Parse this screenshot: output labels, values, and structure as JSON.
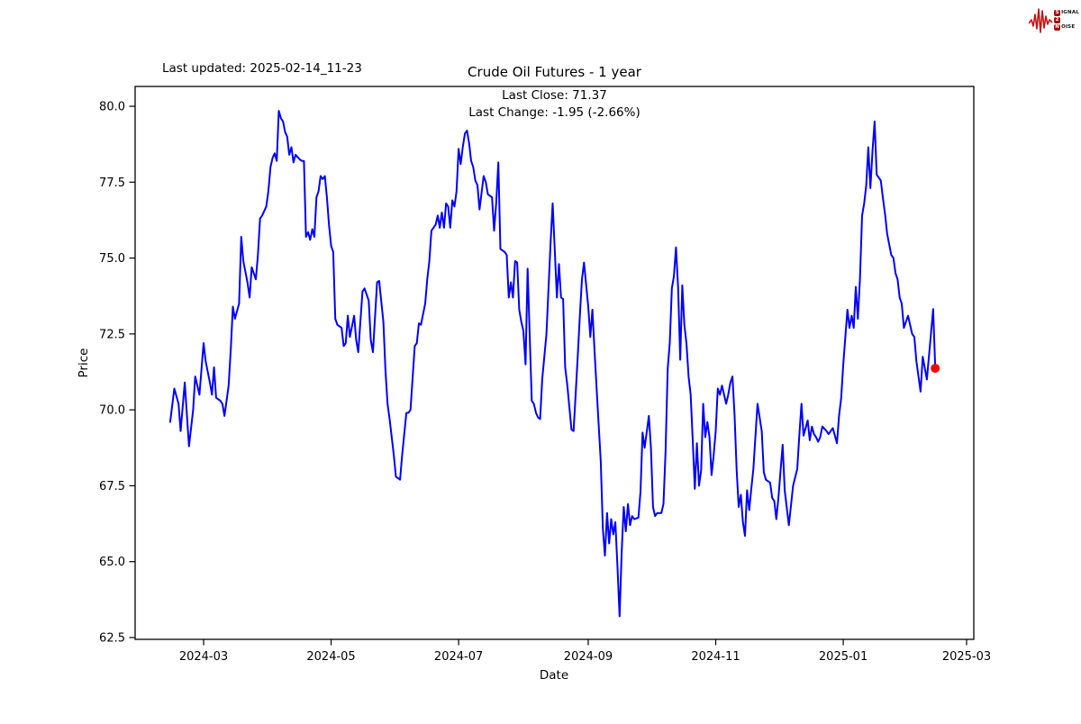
{
  "header": {
    "last_updated": "Last updated: 2025-02-14_11-23"
  },
  "annotation": {
    "line1": "Last Close: 71.37",
    "line2": "Last Change: -1.95 (-2.66%)",
    "last_close": 71.37,
    "last_change": -1.95,
    "last_change_pct": -2.66
  },
  "logo": {
    "waveform_color": "#c41212",
    "rows": [
      {
        "badge": "S",
        "text": "IGNAL"
      },
      {
        "badge": "2",
        "text": ""
      },
      {
        "badge": "N",
        "text": "OISE"
      }
    ]
  },
  "chart_data": {
    "type": "line",
    "title": "Crude Oil Futures - 1 year",
    "xlabel": "Date",
    "ylabel": "Price",
    "line_color": "#0000ff",
    "marker_color": "#ff0000",
    "grid": false,
    "legend": "none",
    "ylim": [
      62.44,
      80.65
    ],
    "y_ticks": [
      {
        "label": "80.0",
        "value": 80.0
      },
      {
        "label": "77.5",
        "value": 77.5
      },
      {
        "label": "75.0",
        "value": 75.0
      },
      {
        "label": "72.5",
        "value": 72.5
      },
      {
        "label": "70.0",
        "value": 70.0
      },
      {
        "label": "67.5",
        "value": 67.5
      },
      {
        "label": "65.0",
        "value": 65.0
      },
      {
        "label": "62.5",
        "value": 62.5
      }
    ],
    "x_ticks": [
      {
        "label": "2024-03",
        "date": "2024-03-01"
      },
      {
        "label": "2024-05",
        "date": "2024-05-01"
      },
      {
        "label": "2024-07",
        "date": "2024-07-01"
      },
      {
        "label": "2024-09",
        "date": "2024-09-01"
      },
      {
        "label": "2024-11",
        "date": "2024-11-01"
      },
      {
        "label": "2025-01",
        "date": "2025-01-01"
      },
      {
        "label": "2025-03",
        "date": "2025-03-01"
      }
    ],
    "last_point": {
      "date": "2025-02-14",
      "price": 71.37
    },
    "series": [
      [
        "2024-02-14",
        69.6
      ],
      [
        "2024-02-16",
        70.7
      ],
      [
        "2024-02-18",
        70.2
      ],
      [
        "2024-02-19",
        69.3
      ],
      [
        "2024-02-21",
        70.9
      ],
      [
        "2024-02-23",
        68.8
      ],
      [
        "2024-02-25",
        70.0
      ],
      [
        "2024-02-26",
        71.1
      ],
      [
        "2024-02-28",
        70.5
      ],
      [
        "2024-03-01",
        72.2
      ],
      [
        "2024-03-02",
        71.6
      ],
      [
        "2024-03-04",
        70.9
      ],
      [
        "2024-03-05",
        70.5
      ],
      [
        "2024-03-06",
        71.4
      ],
      [
        "2024-03-07",
        70.4
      ],
      [
        "2024-03-09",
        70.3
      ],
      [
        "2024-03-10",
        70.2
      ],
      [
        "2024-03-11",
        69.8
      ],
      [
        "2024-03-13",
        70.8
      ],
      [
        "2024-03-14",
        72.0
      ],
      [
        "2024-03-15",
        73.4
      ],
      [
        "2024-03-16",
        73.0
      ],
      [
        "2024-03-18",
        73.5
      ],
      [
        "2024-03-19",
        75.7
      ],
      [
        "2024-03-20",
        74.9
      ],
      [
        "2024-03-22",
        74.2
      ],
      [
        "2024-03-23",
        73.7
      ],
      [
        "2024-03-24",
        74.7
      ],
      [
        "2024-03-26",
        74.3
      ],
      [
        "2024-03-27",
        75.1
      ],
      [
        "2024-03-28",
        76.3
      ],
      [
        "2024-03-29",
        76.4
      ],
      [
        "2024-03-31",
        76.7
      ],
      [
        "2024-04-01",
        77.2
      ],
      [
        "2024-04-02",
        78.0
      ],
      [
        "2024-04-03",
        78.3
      ],
      [
        "2024-04-04",
        78.45
      ],
      [
        "2024-04-05",
        78.2
      ],
      [
        "2024-04-06",
        79.85
      ],
      [
        "2024-04-07",
        79.6
      ],
      [
        "2024-04-08",
        79.5
      ],
      [
        "2024-04-09",
        79.15
      ],
      [
        "2024-04-10",
        79.0
      ],
      [
        "2024-04-11",
        78.4
      ],
      [
        "2024-04-12",
        78.65
      ],
      [
        "2024-04-13",
        78.15
      ],
      [
        "2024-04-14",
        78.4
      ],
      [
        "2024-04-16",
        78.25
      ],
      [
        "2024-04-17",
        78.2
      ],
      [
        "2024-04-18",
        78.2
      ],
      [
        "2024-04-19",
        75.7
      ],
      [
        "2024-04-20",
        75.85
      ],
      [
        "2024-04-21",
        75.6
      ],
      [
        "2024-04-22",
        75.95
      ],
      [
        "2024-04-23",
        75.7
      ],
      [
        "2024-04-24",
        77.0
      ],
      [
        "2024-04-25",
        77.2
      ],
      [
        "2024-04-26",
        77.7
      ],
      [
        "2024-04-27",
        77.6
      ],
      [
        "2024-04-28",
        77.7
      ],
      [
        "2024-04-29",
        77.0
      ],
      [
        "2024-04-30",
        76.1
      ],
      [
        "2024-05-01",
        75.4
      ],
      [
        "2024-05-02",
        75.2
      ],
      [
        "2024-05-03",
        73.0
      ],
      [
        "2024-05-04",
        72.8
      ],
      [
        "2024-05-06",
        72.7
      ],
      [
        "2024-05-07",
        72.1
      ],
      [
        "2024-05-08",
        72.2
      ],
      [
        "2024-05-09",
        73.1
      ],
      [
        "2024-05-10",
        72.4
      ],
      [
        "2024-05-12",
        73.1
      ],
      [
        "2024-05-13",
        72.3
      ],
      [
        "2024-05-14",
        71.9
      ],
      [
        "2024-05-16",
        73.9
      ],
      [
        "2024-05-17",
        74.0
      ],
      [
        "2024-05-19",
        73.6
      ],
      [
        "2024-05-20",
        72.3
      ],
      [
        "2024-05-21",
        71.9
      ],
      [
        "2024-05-23",
        74.2
      ],
      [
        "2024-05-24",
        74.25
      ],
      [
        "2024-05-26",
        72.9
      ],
      [
        "2024-05-27",
        71.3
      ],
      [
        "2024-05-28",
        70.2
      ],
      [
        "2024-05-29",
        69.7
      ],
      [
        "2024-05-31",
        68.5
      ],
      [
        "2024-06-01",
        67.8
      ],
      [
        "2024-06-03",
        67.7
      ],
      [
        "2024-06-04",
        68.5
      ],
      [
        "2024-06-06",
        69.9
      ],
      [
        "2024-06-07",
        69.9
      ],
      [
        "2024-06-08",
        70.0
      ],
      [
        "2024-06-10",
        72.1
      ],
      [
        "2024-06-11",
        72.2
      ],
      [
        "2024-06-12",
        72.85
      ],
      [
        "2024-06-13",
        72.8
      ],
      [
        "2024-06-15",
        73.5
      ],
      [
        "2024-06-16",
        74.3
      ],
      [
        "2024-06-17",
        74.9
      ],
      [
        "2024-06-18",
        75.9
      ],
      [
        "2024-06-20",
        76.1
      ],
      [
        "2024-06-21",
        76.4
      ],
      [
        "2024-06-22",
        76.0
      ],
      [
        "2024-06-23",
        76.5
      ],
      [
        "2024-06-24",
        76.0
      ],
      [
        "2024-06-25",
        76.8
      ],
      [
        "2024-06-26",
        76.7
      ],
      [
        "2024-06-27",
        76.0
      ],
      [
        "2024-06-28",
        76.9
      ],
      [
        "2024-06-29",
        76.7
      ],
      [
        "2024-06-30",
        77.2
      ],
      [
        "2024-07-01",
        78.6
      ],
      [
        "2024-07-02",
        78.1
      ],
      [
        "2024-07-03",
        78.65
      ],
      [
        "2024-07-04",
        79.1
      ],
      [
        "2024-07-05",
        79.2
      ],
      [
        "2024-07-06",
        78.8
      ],
      [
        "2024-07-07",
        78.2
      ],
      [
        "2024-07-08",
        78.0
      ],
      [
        "2024-07-09",
        77.55
      ],
      [
        "2024-07-10",
        77.4
      ],
      [
        "2024-07-11",
        76.6
      ],
      [
        "2024-07-13",
        77.7
      ],
      [
        "2024-07-14",
        77.5
      ],
      [
        "2024-07-15",
        77.1
      ],
      [
        "2024-07-16",
        77.05
      ],
      [
        "2024-07-17",
        77.0
      ],
      [
        "2024-07-18",
        75.9
      ],
      [
        "2024-07-19",
        76.85
      ],
      [
        "2024-07-20",
        78.15
      ],
      [
        "2024-07-21",
        75.3
      ],
      [
        "2024-07-22",
        75.25
      ],
      [
        "2024-07-23",
        75.2
      ],
      [
        "2024-07-24",
        75.1
      ],
      [
        "2024-07-25",
        73.7
      ],
      [
        "2024-07-26",
        74.2
      ],
      [
        "2024-07-27",
        73.7
      ],
      [
        "2024-07-28",
        74.9
      ],
      [
        "2024-07-29",
        74.85
      ],
      [
        "2024-07-30",
        73.3
      ],
      [
        "2024-07-31",
        72.9
      ],
      [
        "2024-08-01",
        72.6
      ],
      [
        "2024-08-02",
        71.5
      ],
      [
        "2024-08-03",
        74.65
      ],
      [
        "2024-08-05",
        70.3
      ],
      [
        "2024-08-06",
        70.2
      ],
      [
        "2024-08-07",
        69.9
      ],
      [
        "2024-08-08",
        69.75
      ],
      [
        "2024-08-09",
        69.7
      ],
      [
        "2024-08-10",
        71.0
      ],
      [
        "2024-08-12",
        72.5
      ],
      [
        "2024-08-13",
        74.0
      ],
      [
        "2024-08-14",
        75.5
      ],
      [
        "2024-08-15",
        76.8
      ],
      [
        "2024-08-17",
        73.7
      ],
      [
        "2024-08-18",
        74.8
      ],
      [
        "2024-08-19",
        73.7
      ],
      [
        "2024-08-20",
        73.65
      ],
      [
        "2024-08-21",
        71.4
      ],
      [
        "2024-08-22",
        70.8
      ],
      [
        "2024-08-24",
        69.35
      ],
      [
        "2024-08-25",
        69.3
      ],
      [
        "2024-08-26",
        70.5
      ],
      [
        "2024-08-27",
        71.8
      ],
      [
        "2024-08-28",
        73.1
      ],
      [
        "2024-08-29",
        74.3
      ],
      [
        "2024-08-30",
        74.85
      ],
      [
        "2024-09-01",
        73.4
      ],
      [
        "2024-09-02",
        72.4
      ],
      [
        "2024-09-03",
        73.3
      ],
      [
        "2024-09-04",
        72.0
      ],
      [
        "2024-09-05",
        70.7
      ],
      [
        "2024-09-06",
        69.5
      ],
      [
        "2024-09-07",
        68.3
      ],
      [
        "2024-09-08",
        66.1
      ],
      [
        "2024-09-09",
        65.2
      ],
      [
        "2024-09-10",
        66.6
      ],
      [
        "2024-09-11",
        65.6
      ],
      [
        "2024-09-12",
        66.4
      ],
      [
        "2024-09-13",
        65.9
      ],
      [
        "2024-09-14",
        66.3
      ],
      [
        "2024-09-15",
        64.8
      ],
      [
        "2024-09-16",
        63.2
      ],
      [
        "2024-09-17",
        65.3
      ],
      [
        "2024-09-18",
        66.8
      ],
      [
        "2024-09-19",
        66.0
      ],
      [
        "2024-09-20",
        66.9
      ],
      [
        "2024-09-21",
        66.2
      ],
      [
        "2024-09-22",
        66.5
      ],
      [
        "2024-09-23",
        66.4
      ],
      [
        "2024-09-25",
        66.45
      ],
      [
        "2024-09-26",
        67.3
      ],
      [
        "2024-09-27",
        69.25
      ],
      [
        "2024-09-28",
        68.75
      ],
      [
        "2024-09-30",
        69.8
      ],
      [
        "2024-10-01",
        68.75
      ],
      [
        "2024-10-02",
        66.8
      ],
      [
        "2024-10-03",
        66.5
      ],
      [
        "2024-10-04",
        66.6
      ],
      [
        "2024-10-06",
        66.6
      ],
      [
        "2024-10-07",
        66.9
      ],
      [
        "2024-10-08",
        68.6
      ],
      [
        "2024-10-09",
        71.35
      ],
      [
        "2024-10-10",
        72.2
      ],
      [
        "2024-10-11",
        74.0
      ],
      [
        "2024-10-12",
        74.4
      ],
      [
        "2024-10-13",
        75.35
      ],
      [
        "2024-10-14",
        74.0
      ],
      [
        "2024-10-15",
        71.65
      ],
      [
        "2024-10-16",
        74.1
      ],
      [
        "2024-10-17",
        72.8
      ],
      [
        "2024-10-18",
        72.2
      ],
      [
        "2024-10-19",
        71.1
      ],
      [
        "2024-10-20",
        70.5
      ],
      [
        "2024-10-21",
        69.0
      ],
      [
        "2024-10-22",
        67.4
      ],
      [
        "2024-10-23",
        68.9
      ],
      [
        "2024-10-24",
        67.5
      ],
      [
        "2024-10-25",
        68.0
      ],
      [
        "2024-10-26",
        70.2
      ],
      [
        "2024-10-27",
        69.1
      ],
      [
        "2024-10-28",
        69.6
      ],
      [
        "2024-10-29",
        69.1
      ],
      [
        "2024-10-30",
        67.85
      ],
      [
        "2024-10-31",
        68.5
      ],
      [
        "2024-11-01",
        69.3
      ],
      [
        "2024-11-02",
        70.7
      ],
      [
        "2024-11-03",
        70.5
      ],
      [
        "2024-11-04",
        70.8
      ],
      [
        "2024-11-05",
        70.5
      ],
      [
        "2024-11-06",
        70.2
      ],
      [
        "2024-11-07",
        70.5
      ],
      [
        "2024-11-08",
        70.9
      ],
      [
        "2024-11-09",
        71.1
      ],
      [
        "2024-11-10",
        69.85
      ],
      [
        "2024-11-11",
        68.05
      ],
      [
        "2024-11-12",
        66.8
      ],
      [
        "2024-11-13",
        67.2
      ],
      [
        "2024-11-14",
        66.3
      ],
      [
        "2024-11-15",
        65.85
      ],
      [
        "2024-11-16",
        67.35
      ],
      [
        "2024-11-17",
        66.7
      ],
      [
        "2024-11-18",
        67.4
      ],
      [
        "2024-11-19",
        68.05
      ],
      [
        "2024-11-21",
        70.2
      ],
      [
        "2024-11-23",
        69.3
      ],
      [
        "2024-11-24",
        67.95
      ],
      [
        "2024-11-25",
        67.7
      ],
      [
        "2024-11-27",
        67.6
      ],
      [
        "2024-11-28",
        67.1
      ],
      [
        "2024-11-29",
        67.0
      ],
      [
        "2024-11-30",
        66.4
      ],
      [
        "2024-12-01",
        67.1
      ],
      [
        "2024-12-03",
        68.85
      ],
      [
        "2024-12-04",
        67.35
      ],
      [
        "2024-12-06",
        66.2
      ],
      [
        "2024-12-08",
        67.5
      ],
      [
        "2024-12-10",
        68.05
      ],
      [
        "2024-12-11",
        69.15
      ],
      [
        "2024-12-12",
        70.2
      ],
      [
        "2024-12-13",
        69.15
      ],
      [
        "2024-12-15",
        69.65
      ],
      [
        "2024-12-16",
        69.0
      ],
      [
        "2024-12-17",
        69.45
      ],
      [
        "2024-12-18",
        69.2
      ],
      [
        "2024-12-19",
        69.1
      ],
      [
        "2024-12-20",
        68.95
      ],
      [
        "2024-12-21",
        69.1
      ],
      [
        "2024-12-22",
        69.45
      ],
      [
        "2024-12-24",
        69.3
      ],
      [
        "2024-12-25",
        69.2
      ],
      [
        "2024-12-26",
        69.3
      ],
      [
        "2024-12-27",
        69.4
      ],
      [
        "2024-12-29",
        68.9
      ],
      [
        "2024-12-30",
        69.8
      ],
      [
        "2024-12-31",
        70.4
      ],
      [
        "2025-01-01",
        71.5
      ],
      [
        "2025-01-03",
        73.3
      ],
      [
        "2025-01-04",
        72.7
      ],
      [
        "2025-01-05",
        73.1
      ],
      [
        "2025-01-06",
        72.7
      ],
      [
        "2025-01-07",
        74.05
      ],
      [
        "2025-01-08",
        73.0
      ],
      [
        "2025-01-09",
        74.3
      ],
      [
        "2025-01-10",
        76.4
      ],
      [
        "2025-01-11",
        76.8
      ],
      [
        "2025-01-12",
        77.4
      ],
      [
        "2025-01-13",
        78.65
      ],
      [
        "2025-01-14",
        77.3
      ],
      [
        "2025-01-15",
        78.55
      ],
      [
        "2025-01-16",
        79.5
      ],
      [
        "2025-01-17",
        77.75
      ],
      [
        "2025-01-19",
        77.55
      ],
      [
        "2025-01-20",
        76.95
      ],
      [
        "2025-01-21",
        76.45
      ],
      [
        "2025-01-22",
        75.8
      ],
      [
        "2025-01-24",
        75.1
      ],
      [
        "2025-01-25",
        75.0
      ],
      [
        "2025-01-26",
        74.5
      ],
      [
        "2025-01-27",
        74.3
      ],
      [
        "2025-01-28",
        73.7
      ],
      [
        "2025-01-29",
        73.5
      ],
      [
        "2025-01-30",
        72.7
      ],
      [
        "2025-02-01",
        73.1
      ],
      [
        "2025-02-03",
        72.5
      ],
      [
        "2025-02-04",
        72.4
      ],
      [
        "2025-02-05",
        71.6
      ],
      [
        "2025-02-07",
        70.6
      ],
      [
        "2025-02-08",
        71.75
      ],
      [
        "2025-02-10",
        71.0
      ],
      [
        "2025-02-13",
        73.32
      ],
      [
        "2025-02-14",
        71.37
      ]
    ]
  }
}
